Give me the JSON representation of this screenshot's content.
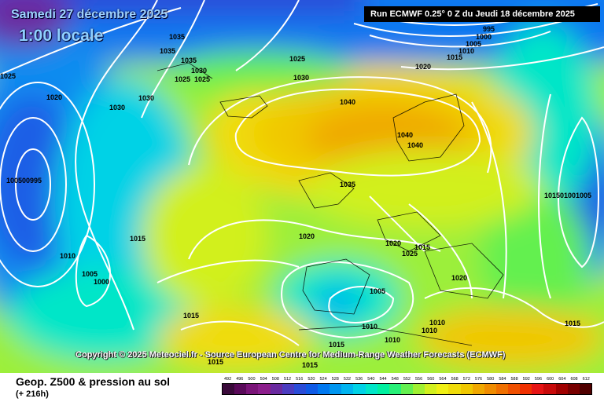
{
  "header": {
    "date": "Samedi 27 décembre 2025",
    "time": "1:00 locale",
    "run": "Run ECMWF 0.25° 0 Z du Jeudi 18 décembre 2025"
  },
  "copyright": "Copyright © 2025 Meteociel.fr - Source European Centre for Medium-Range Weather Forecasts (ECMWF)",
  "footer": {
    "title": "Geop. Z500 & pression au sol",
    "subtitle": "(+ 216h)"
  },
  "legend": {
    "values": [
      "492",
      "496",
      "500",
      "504",
      "508",
      "512",
      "516",
      "520",
      "524",
      "528",
      "532",
      "536",
      "540",
      "544",
      "548",
      "552",
      "556",
      "560",
      "564",
      "568",
      "572",
      "576",
      "580",
      "584",
      "588",
      "592",
      "596",
      "600",
      "604",
      "608",
      "612"
    ],
    "colors": [
      "#3a0a3a",
      "#5a0a5a",
      "#7a1478",
      "#8c1e8c",
      "#6a2aa0",
      "#4b3cc0",
      "#2a4cd8",
      "#0f5ae6",
      "#0078f0",
      "#0096f0",
      "#00b4f0",
      "#00d2e6",
      "#00e6c8",
      "#00f0a0",
      "#28f078",
      "#64f050",
      "#a0f032",
      "#d2f01e",
      "#f0f014",
      "#f0dc0a",
      "#f0c800",
      "#f0a800",
      "#f08c00",
      "#f07000",
      "#f05000",
      "#f03000",
      "#e61414",
      "#c80a0a",
      "#a00000",
      "#780000",
      "#500000"
    ]
  },
  "pressure_labels": [
    "1035",
    "1035",
    "1035",
    "1030",
    "1025",
    "1030",
    "1025",
    "1020",
    "1030",
    "1030",
    "1025",
    "995",
    "1000",
    "1005",
    "1010",
    "1015",
    "1020",
    "1040",
    "1040",
    "1040",
    "1035",
    "1020",
    "1020",
    "1025",
    "1020",
    "1015",
    "1010",
    "1005",
    "1000",
    "1005",
    "1015",
    "1010",
    "1015",
    "1015",
    "1010",
    "1010",
    "1010",
    "1015",
    "1015",
    "1015",
    "100500995",
    "101501001005",
    "1025"
  ],
  "colors": {
    "isobar": "#ffffff",
    "run_box_bg": "#000000",
    "date_text": "#9fd3ff"
  }
}
